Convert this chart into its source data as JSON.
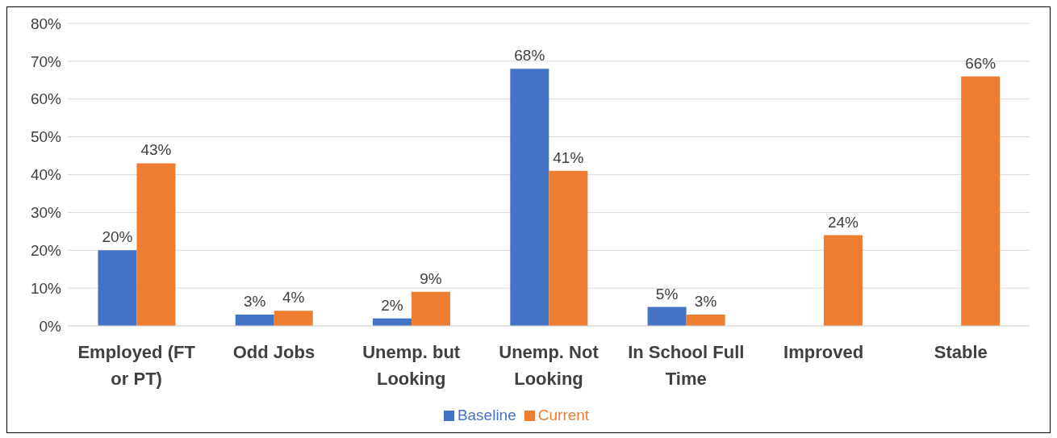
{
  "chart_data": {
    "type": "bar",
    "categories": [
      "Employed (FT or PT)",
      "Odd Jobs",
      "Unemp. but Looking",
      "Unemp. Not Looking",
      "In School Full Time",
      "Improved",
      "Stable"
    ],
    "series": [
      {
        "name": "Baseline",
        "color": "#4472c4",
        "values": [
          20,
          3,
          2,
          68,
          5,
          null,
          null
        ],
        "value_labels": [
          "20%",
          "3%",
          "2%",
          "68%",
          "5%",
          null,
          null
        ]
      },
      {
        "name": "Current",
        "color": "#ed7d31",
        "values": [
          43,
          4,
          9,
          41,
          3,
          24,
          66
        ],
        "value_labels": [
          "43%",
          "4%",
          "9%",
          "41%",
          "3%",
          "24%",
          "66%"
        ]
      }
    ],
    "ylim": [
      0,
      80
    ],
    "yticks": [
      {
        "value": 0,
        "label": "0%"
      },
      {
        "value": 10,
        "label": "10%"
      },
      {
        "value": 20,
        "label": "20%"
      },
      {
        "value": 30,
        "label": "30%"
      },
      {
        "value": 40,
        "label": "40%"
      },
      {
        "value": 50,
        "label": "50%"
      },
      {
        "value": 60,
        "label": "60%"
      },
      {
        "value": 70,
        "label": "70%"
      },
      {
        "value": 80,
        "label": "80%"
      }
    ],
    "grid": "y",
    "legend": "bottom"
  }
}
